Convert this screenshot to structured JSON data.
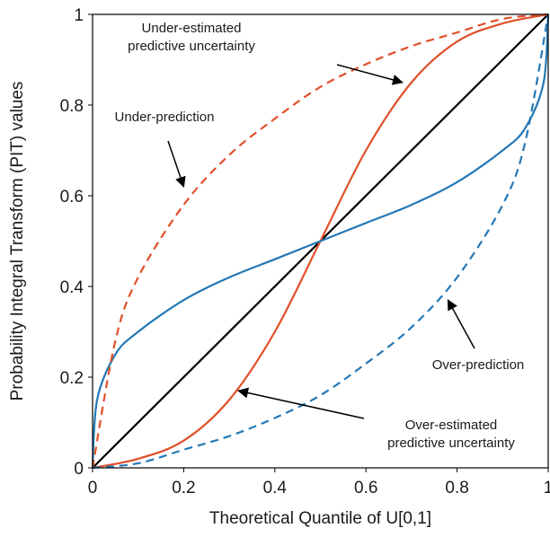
{
  "chart_data": {
    "type": "line",
    "title": "",
    "xlabel": "Theoretical Quantile of U[0,1]",
    "ylabel": "Probability Integral Transform (PIT) values",
    "xlim": [
      0,
      1
    ],
    "ylim": [
      0,
      1
    ],
    "xticks": [
      0,
      0.2,
      0.4,
      0.6,
      0.8,
      1
    ],
    "yticks": [
      0,
      0.2,
      0.4,
      0.6,
      0.8,
      1
    ],
    "xtick_labels": [
      "0",
      "0.2",
      "0.4",
      "0.6",
      "0.8",
      "1"
    ],
    "ytick_labels": [
      "0",
      "0.2",
      "0.4",
      "0.6",
      "0.8",
      "1"
    ],
    "grid": false,
    "legend": "none",
    "colors": {
      "black": "#000000",
      "orange": "#e0502a",
      "blue": "#2478b5"
    },
    "series": [
      {
        "color": "black",
        "dashed": false,
        "x": [
          0,
          1
        ],
        "y": [
          0,
          1
        ]
      },
      {
        "color": "orange",
        "dashed": false,
        "x": [
          0,
          0.1,
          0.2,
          0.3,
          0.4,
          0.5,
          0.6,
          0.7,
          0.8,
          0.9,
          1
        ],
        "y": [
          0,
          0.02,
          0.06,
          0.15,
          0.3,
          0.5,
          0.7,
          0.85,
          0.94,
          0.98,
          1
        ]
      },
      {
        "color": "blue",
        "dashed": false,
        "x": [
          0,
          0.01,
          0.05,
          0.1,
          0.2,
          0.3,
          0.4,
          0.5,
          0.6,
          0.7,
          0.8,
          0.9,
          0.95,
          0.99,
          1
        ],
        "y": [
          0,
          0.15,
          0.25,
          0.3,
          0.37,
          0.42,
          0.46,
          0.5,
          0.54,
          0.58,
          0.63,
          0.7,
          0.75,
          0.85,
          1
        ]
      },
      {
        "color": "orange",
        "dashed": true,
        "x": [
          0,
          0.05,
          0.1,
          0.2,
          0.3,
          0.4,
          0.5,
          0.6,
          0.7,
          0.8,
          0.9,
          1
        ],
        "y": [
          0,
          0.28,
          0.42,
          0.58,
          0.69,
          0.77,
          0.84,
          0.89,
          0.93,
          0.96,
          0.99,
          1
        ]
      },
      {
        "color": "blue",
        "dashed": true,
        "x": [
          0,
          0.1,
          0.2,
          0.3,
          0.4,
          0.5,
          0.6,
          0.7,
          0.8,
          0.9,
          0.95,
          1
        ],
        "y": [
          0,
          0.01,
          0.04,
          0.07,
          0.11,
          0.16,
          0.23,
          0.31,
          0.42,
          0.58,
          0.72,
          1
        ]
      }
    ],
    "annotations": [
      {
        "lines": [
          "Under-estimated",
          "predictive uncertainty"
        ],
        "arrow_to": [
          0.68,
          0.85
        ]
      },
      {
        "lines": [
          "Under-prediction"
        ],
        "arrow_to": [
          0.2,
          0.62
        ]
      },
      {
        "lines": [
          "Over-prediction"
        ],
        "arrow_to": [
          0.78,
          0.37
        ]
      },
      {
        "lines": [
          "Over-estimated",
          "predictive uncertainty"
        ],
        "arrow_to": [
          0.32,
          0.17
        ]
      }
    ]
  }
}
